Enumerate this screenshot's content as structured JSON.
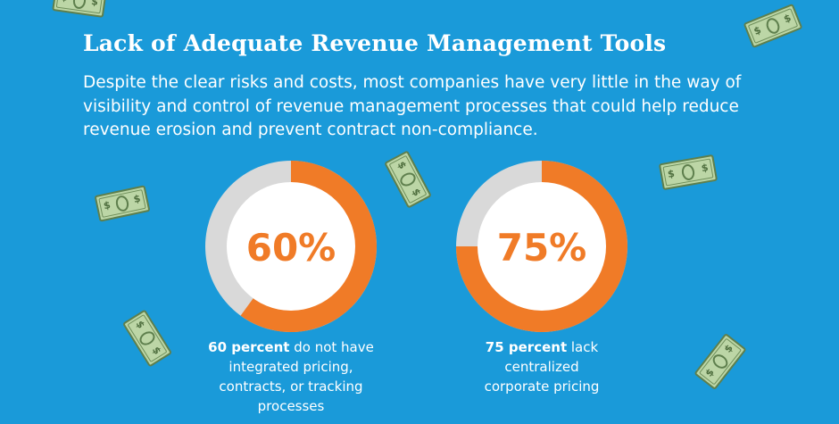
{
  "header": {
    "title": "Lack of Adequate Revenue Management Tools",
    "description": "Despite the clear risks and costs, most companies have very little in the way of visibility and control of revenue management processes that could help reduce revenue erosion and prevent contract non-compliance."
  },
  "stats": [
    {
      "percent": 60,
      "label": "60%",
      "caption_bold": "60 percent",
      "caption_rest": " do not have integrated pricing, contracts, or tracking processes"
    },
    {
      "percent": 75,
      "label": "75%",
      "caption_bold": "75 percent",
      "caption_rest": " lack centralized corporate pricing"
    }
  ],
  "colors": {
    "background": "#1a9ad9",
    "ring_fill": "#f07b27",
    "ring_track": "#d9d9d9",
    "inner": "#ffffff",
    "text": "#ffffff",
    "percent_text": "#f07b27"
  },
  "icons": [
    "dollar-bill-icon"
  ]
}
